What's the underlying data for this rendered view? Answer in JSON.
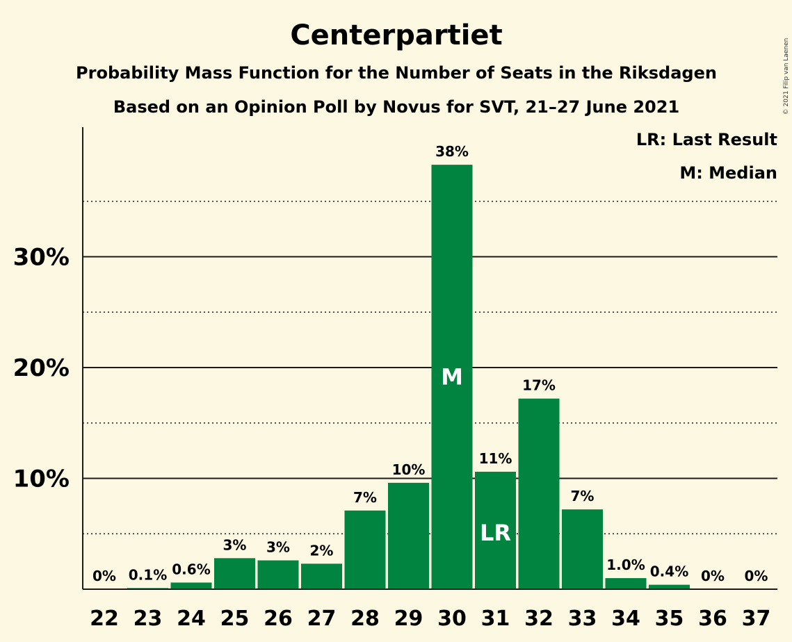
{
  "chart_data": {
    "type": "bar",
    "title": "Centerpartiet",
    "subtitle": "Probability Mass Function for the Number of Seats in the Riksdagen",
    "subtitle2": "Based on an Opinion Poll by Novus for SVT, 21–27 June 2021",
    "copyright": "© 2021 Filip van Laenen",
    "legend": {
      "placement": "top-right",
      "entries": [
        "LR: Last Result",
        "M: Median"
      ]
    },
    "categories": [
      "22",
      "23",
      "24",
      "25",
      "26",
      "27",
      "28",
      "29",
      "30",
      "31",
      "32",
      "33",
      "34",
      "35",
      "36",
      "37"
    ],
    "values": [
      0,
      0.1,
      0.6,
      2.8,
      2.6,
      2.3,
      7.1,
      9.6,
      38.3,
      10.6,
      17.2,
      7.2,
      1.0,
      0.4,
      0,
      0
    ],
    "value_labels": [
      "0%",
      "0.1%",
      "0.6%",
      "3%",
      "3%",
      "2%",
      "7%",
      "10%",
      "38%",
      "11%",
      "17%",
      "7%",
      "1.0%",
      "0.4%",
      "0%",
      "0%"
    ],
    "bar_markers": {
      "30": "M",
      "31": "LR"
    },
    "yticks": [
      10,
      20,
      30
    ],
    "ytick_labels": [
      "10%",
      "20%",
      "30%"
    ],
    "ylim": [
      0,
      41
    ],
    "grid": {
      "major": true,
      "minor_dotted": true
    },
    "colors": {
      "bar": "#00843f",
      "background": "#fdf8e1",
      "text": "#1a1a1a"
    }
  }
}
